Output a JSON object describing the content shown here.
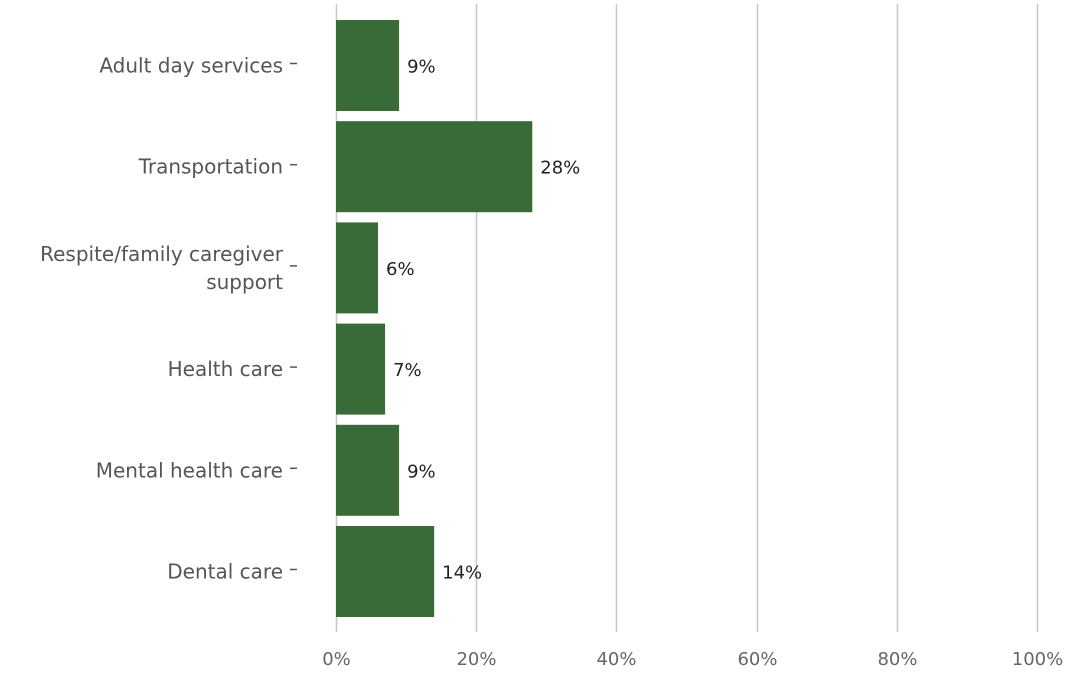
{
  "chart_data": {
    "type": "bar",
    "orientation": "horizontal",
    "title": "",
    "xlabel": "",
    "ylabel": "",
    "categories": [
      "Adult day services",
      "Transportation",
      "Respite/family caregiver support",
      "Health care",
      "Mental health care",
      "Dental care"
    ],
    "values": [
      9,
      28,
      6,
      7,
      9,
      14
    ],
    "value_labels": [
      "9%",
      "28%",
      "6%",
      "7%",
      "9%",
      "14%"
    ],
    "xlim": [
      0,
      100
    ],
    "x_ticks": [
      0,
      20,
      40,
      60,
      80,
      100
    ],
    "x_tick_labels": [
      "0%",
      "20%",
      "40%",
      "60%",
      "80%",
      "100%"
    ],
    "grid": "vertical",
    "legend": "none",
    "colors": {
      "bar": "#386b38",
      "grid": "#c8c8c8",
      "category_text": "#555555",
      "tick_text": "#666666",
      "value_text": "#222222"
    }
  }
}
